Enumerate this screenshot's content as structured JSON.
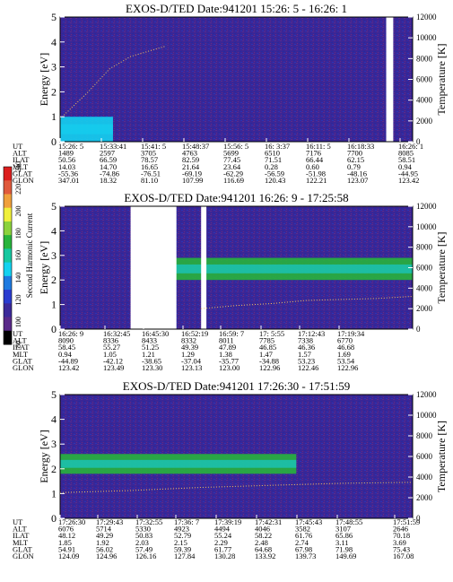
{
  "figure": {
    "colorbar": {
      "label": "Second Harmonic Current",
      "ticks": [
        "80",
        "100",
        "120",
        "140",
        "160",
        "180",
        "200",
        "220",
        "240"
      ],
      "range": [
        80,
        240
      ],
      "colors": [
        "#000000",
        "#5a2a8a",
        "#3c2a9a",
        "#2a3cd0",
        "#1e7ae0",
        "#14d2f0",
        "#16c8a0",
        "#28b43c",
        "#8cd23c",
        "#f0f03c",
        "#f0a03c",
        "#e05a3c",
        "#dc1e1e"
      ]
    },
    "panels": [
      {
        "title": "EXOS-D/TED   Date:941201  15:26: 5 - 16:26: 1",
        "ylabel": "Energy [eV]",
        "y2label": "Temperature [K]",
        "yticks": [
          "0",
          "1",
          "2",
          "3",
          "4",
          "5"
        ],
        "y2ticks": [
          "0",
          "2000",
          "4000",
          "6000",
          "8000",
          "10000",
          "12000"
        ],
        "orbit_labels": [
          "UT",
          "ALT",
          "ILAT",
          "MLT",
          "GLAT",
          "GLON"
        ],
        "columns": [
          [
            "15:26: 5",
            "1489",
            "50.56",
            "14.03",
            "-55.36",
            "347.01"
          ],
          [
            "15:33:41",
            "2597",
            "66.59",
            "14.70",
            "-74.86",
            "18.32"
          ],
          [
            "15:41: 5",
            "3705",
            "78.57",
            "16.65",
            "-76.51",
            "81.10"
          ],
          [
            "15:48:37",
            "4763",
            "82.59",
            "21.64",
            "-69.19",
            "107.99"
          ],
          [
            "15:56: 5",
            "5699",
            "77.45",
            "23.64",
            "-62.29",
            "116.69"
          ],
          [
            "16: 3:37",
            "6510",
            "71.51",
            "0.28",
            "-56.59",
            "120.43"
          ],
          [
            "16:11: 5",
            "7176",
            "66.44",
            "0.60",
            "-51.98",
            "122.21"
          ],
          [
            "16:18:33",
            "7700",
            "62.15",
            "0.79",
            "-48.16",
            "123.07"
          ],
          [
            "16:26: 1",
            "8085",
            "58.51",
            "0.94",
            "-44.95",
            "123.42"
          ]
        ]
      },
      {
        "title": "EXOS-D/TED   Date:941201  16:26: 9 - 17:25:58",
        "ylabel": "Energy [eV]",
        "y2label": "Temperature [K]",
        "yticks": [
          "0",
          "1",
          "2",
          "3",
          "4",
          "5"
        ],
        "y2ticks": [
          "0",
          "2000",
          "4000",
          "6000",
          "8000",
          "10000",
          "12000"
        ],
        "orbit_labels": [
          "UT",
          "ALT",
          "ILAT",
          "MLT",
          "GLAT",
          "GLON"
        ],
        "columns": [
          [
            "16:26: 9",
            "8090",
            "58.45",
            "0.94",
            "-44.89",
            "123.42"
          ],
          [
            "16:32:45",
            "8336",
            "55.27",
            "1.05",
            "-42.12",
            "123.49"
          ],
          [
            "16:45:30",
            "8433",
            "51.25",
            "1.21",
            "-38.65",
            "123.30"
          ],
          [
            "16:52:19",
            "8332",
            "49.39",
            "1.29",
            "-37.04",
            "123.13"
          ],
          [
            "16:59: 7",
            "8011",
            "47.89",
            "1.38",
            "-35.77",
            "123.00"
          ],
          [
            "17: 5:55",
            "7785",
            "46.85",
            "1.47",
            "-34.88",
            "122.96"
          ],
          [
            "17:12:43",
            "7338",
            "46.36",
            "1.57",
            "53.23",
            "122.46"
          ],
          [
            "17:19:34",
            "6770",
            "46.68",
            "1.69",
            "53.54",
            "122.96"
          ]
        ]
      },
      {
        "title": "EXOS-D/TED   Date:941201  17:26:30 - 17:51:59",
        "ylabel": "Energy [eV]",
        "y2label": "Temperature [K]",
        "yticks": [
          "0",
          "1",
          "2",
          "3",
          "4",
          "5"
        ],
        "y2ticks": [
          "0",
          "2000",
          "4000",
          "6000",
          "8000",
          "10000",
          "12000"
        ],
        "orbit_labels": [
          "UT",
          "ALT",
          "ILAT",
          "MLT",
          "GLAT",
          "GLON"
        ],
        "columns": [
          [
            "17:26:30",
            "6076",
            "48.12",
            "1.85",
            "54.91",
            "124.09"
          ],
          [
            "17:29:43",
            "5714",
            "49.29",
            "1.92",
            "56.02",
            "124.96"
          ],
          [
            "17:32:55",
            "5330",
            "50.83",
            "2.03",
            "57.49",
            "126.16"
          ],
          [
            "17:36: 7",
            "4923",
            "52.79",
            "2.15",
            "59.39",
            "127.84"
          ],
          [
            "17:39:19",
            "4494",
            "55.24",
            "2.29",
            "61.77",
            "130.28"
          ],
          [
            "17:42:31",
            "4046",
            "58.22",
            "2.48",
            "64.68",
            "133.92"
          ],
          [
            "17:45:43",
            "3582",
            "61.76",
            "2.74",
            "67.98",
            "139.73"
          ],
          [
            "17:48:55",
            "3107",
            "65.86",
            "3.11",
            "71.98",
            "149.69"
          ],
          [
            "17:51:59",
            "2646",
            "70.18",
            "3.69",
            "75.43",
            "167.08"
          ]
        ]
      }
    ]
  },
  "chart_data": [
    {
      "type": "heatmap",
      "title": "EXOS-D/TED   Date:941201  15:26: 5 - 16:26: 1",
      "xlabel": "UT",
      "ylabel": "Energy [eV]",
      "y2label": "Temperature [K]",
      "ylim": [
        0,
        5
      ],
      "y2lim": [
        0,
        12000
      ],
      "x_ticks": [
        "15:26: 5",
        "15:33:41",
        "15:41: 5",
        "15:48:37",
        "15:56: 5",
        "16: 3:37",
        "16:11: 5",
        "16:18:33",
        "16:26: 1"
      ],
      "colorbar_label": "Second Harmonic Current",
      "colorbar_range": [
        80,
        240
      ],
      "series": [
        {
          "kind": "band",
          "x": [
            0.0,
            0.15
          ],
          "y": [
            0.0,
            1.0
          ],
          "level": 145
        },
        {
          "kind": "background",
          "level": 110
        },
        {
          "kind": "data_gap",
          "x": [
            0.925,
            0.945
          ]
        }
      ],
      "temperature": {
        "x": [
          0.0,
          0.08,
          0.14,
          0.2,
          0.3
        ],
        "y": [
          2200,
          4800,
          7000,
          8200,
          9200
        ]
      }
    },
    {
      "type": "heatmap",
      "title": "EXOS-D/TED   Date:941201  16:26: 9 - 17:25:58",
      "xlabel": "UT",
      "ylabel": "Energy [eV]",
      "y2label": "Temperature [K]",
      "ylim": [
        0,
        5
      ],
      "y2lim": [
        0,
        12000
      ],
      "x_ticks": [
        "16:26: 9",
        "16:32:45",
        "16:45:30",
        "16:52:19",
        "16:59: 7",
        "17: 5:55",
        "17:12:43",
        "17:19:34"
      ],
      "colorbar_label": "Second Harmonic Current",
      "colorbar_range": [
        80,
        240
      ],
      "series": [
        {
          "kind": "band",
          "x": [
            0.24,
            1.0
          ],
          "y": [
            2.0,
            2.9
          ],
          "level": 175
        },
        {
          "kind": "data_gap",
          "x": [
            0.2,
            0.33
          ]
        },
        {
          "kind": "data_gap",
          "x": [
            0.4,
            0.415
          ]
        }
      ],
      "temperature": {
        "x": [
          0.4,
          0.5,
          0.6,
          0.7,
          0.8,
          0.9,
          1.0
        ],
        "y": [
          2000,
          2300,
          2500,
          2800,
          2900,
          3000,
          3200
        ]
      }
    },
    {
      "type": "heatmap",
      "title": "EXOS-D/TED   Date:941201  17:26:30 - 17:51:59",
      "xlabel": "UT",
      "ylabel": "Energy [eV]",
      "y2label": "Temperature [K]",
      "ylim": [
        0,
        5
      ],
      "y2lim": [
        0,
        12000
      ],
      "x_ticks": [
        "17:26:30",
        "17:29:43",
        "17:32:55",
        "17:36: 7",
        "17:39:19",
        "17:42:31",
        "17:45:43",
        "17:48:55",
        "17:51:59"
      ],
      "colorbar_label": "Second Harmonic Current",
      "colorbar_range": [
        80,
        240
      ],
      "series": [
        {
          "kind": "band",
          "x": [
            0.0,
            0.67
          ],
          "y": [
            1.8,
            2.6
          ],
          "level": 175
        }
      ],
      "temperature": {
        "x": [
          0.0,
          0.2,
          0.4,
          0.6,
          0.8,
          1.0
        ],
        "y": [
          2500,
          2700,
          3000,
          3200,
          3400,
          3500
        ]
      }
    }
  ]
}
